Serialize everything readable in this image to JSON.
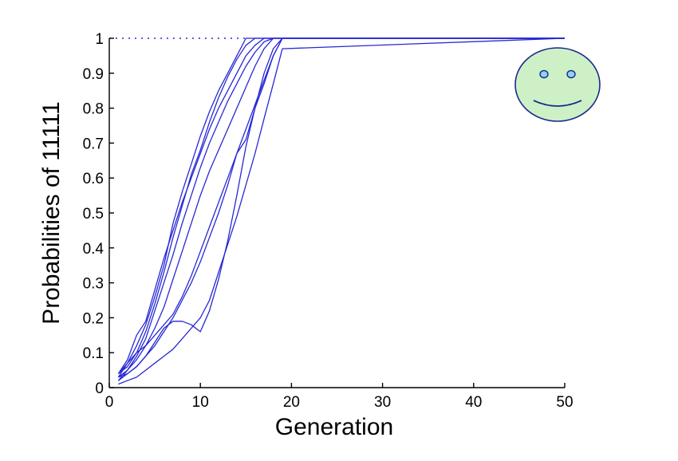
{
  "chart_data": {
    "type": "line",
    "title": "",
    "xlabel": "Generation",
    "ylabel": "Probabilities of 11111",
    "xlim": [
      0,
      50
    ],
    "ylim": [
      0,
      1
    ],
    "x_ticks": [
      0,
      10,
      20,
      30,
      40,
      50
    ],
    "x_tick_labels": [
      "0",
      "10",
      "20",
      "30",
      "40",
      "50"
    ],
    "y_ticks": [
      0,
      0.1,
      0.2,
      0.3,
      0.4,
      0.5,
      0.6,
      0.7,
      0.8,
      0.9,
      1
    ],
    "y_tick_labels": [
      "0",
      "0.1",
      "0.2",
      "0.3",
      "0.4",
      "0.5",
      "0.6",
      "0.7",
      "0.8",
      "0.9",
      "1"
    ],
    "grid": false,
    "legend": "none",
    "line_color": "#2727d6",
    "reference_line": {
      "y": 1,
      "x_range": [
        0,
        15
      ],
      "style": "dotted"
    },
    "series": [
      {
        "x": [
          1,
          2,
          3,
          4,
          5,
          6,
          7,
          8,
          9,
          10,
          11,
          12,
          13,
          14,
          15,
          16,
          17,
          18,
          19,
          50
        ],
        "y": [
          0.04,
          0.06,
          0.1,
          0.16,
          0.24,
          0.33,
          0.43,
          0.52,
          0.61,
          0.68,
          0.76,
          0.83,
          0.89,
          0.94,
          0.98,
          1,
          1,
          1,
          1,
          1
        ]
      },
      {
        "x": [
          1,
          2,
          3,
          4,
          5,
          6,
          7,
          8,
          9,
          10,
          11,
          12,
          13,
          14,
          15,
          16,
          17,
          18,
          19,
          50
        ],
        "y": [
          0.03,
          0.07,
          0.12,
          0.18,
          0.26,
          0.35,
          0.47,
          0.56,
          0.64,
          0.72,
          0.79,
          0.85,
          0.9,
          0.95,
          1,
          1,
          1,
          1,
          1,
          1
        ]
      },
      {
        "x": [
          1,
          2,
          3,
          4,
          5,
          6,
          7,
          8,
          9,
          10,
          11,
          12,
          13,
          14,
          15,
          16,
          17,
          18,
          19,
          50
        ],
        "y": [
          0.04,
          0.08,
          0.15,
          0.19,
          0.28,
          0.37,
          0.45,
          0.53,
          0.6,
          0.67,
          0.74,
          0.8,
          0.85,
          0.9,
          0.95,
          0.98,
          1,
          1,
          1,
          1
        ]
      },
      {
        "x": [
          1,
          2,
          3,
          4,
          5,
          6,
          7,
          8,
          9,
          10,
          11,
          12,
          13,
          14,
          15,
          16,
          17,
          18,
          19,
          50
        ],
        "y": [
          0.02,
          0.05,
          0.09,
          0.14,
          0.22,
          0.3,
          0.38,
          0.47,
          0.55,
          0.63,
          0.7,
          0.76,
          0.82,
          0.87,
          0.92,
          0.96,
          0.99,
          1,
          1,
          1
        ]
      },
      {
        "x": [
          1,
          2,
          3,
          4,
          5,
          6,
          7,
          8,
          9,
          10,
          11,
          12,
          13,
          14,
          15,
          16,
          17,
          18,
          19,
          50
        ],
        "y": [
          0.03,
          0.05,
          0.08,
          0.12,
          0.17,
          0.23,
          0.31,
          0.39,
          0.47,
          0.55,
          0.62,
          0.68,
          0.74,
          0.8,
          0.86,
          0.92,
          0.97,
          1,
          1,
          1
        ]
      },
      {
        "x": [
          1,
          2,
          3,
          4,
          5,
          6,
          7,
          8,
          9,
          10,
          11,
          12,
          13,
          14,
          15,
          16,
          17,
          18,
          19,
          50
        ],
        "y": [
          0.03,
          0.04,
          0.06,
          0.09,
          0.13,
          0.17,
          0.19,
          0.19,
          0.18,
          0.16,
          0.22,
          0.31,
          0.42,
          0.55,
          0.69,
          0.8,
          0.9,
          0.97,
          1,
          1
        ]
      },
      {
        "x": [
          1,
          2,
          3,
          4,
          5,
          6,
          7,
          8,
          9,
          10,
          11,
          12,
          13,
          14,
          15,
          16,
          17,
          18,
          19,
          50
        ],
        "y": [
          0.02,
          0.04,
          0.06,
          0.09,
          0.12,
          0.16,
          0.2,
          0.25,
          0.3,
          0.36,
          0.43,
          0.5,
          0.58,
          0.67,
          0.71,
          0.8,
          0.87,
          0.95,
          1,
          1
        ]
      },
      {
        "x": [
          1,
          2,
          3,
          4,
          5,
          6,
          7,
          8,
          9,
          10,
          11,
          12,
          13,
          14,
          15,
          16,
          17,
          18,
          19,
          50
        ],
        "y": [
          0.01,
          0.02,
          0.03,
          0.05,
          0.07,
          0.09,
          0.11,
          0.14,
          0.17,
          0.2,
          0.25,
          0.33,
          0.41,
          0.49,
          0.58,
          0.67,
          0.77,
          0.87,
          0.97,
          1
        ]
      },
      {
        "x": [
          1,
          2,
          3,
          4,
          5,
          6,
          7,
          8,
          9,
          10,
          11,
          12,
          13,
          14,
          15,
          16,
          17,
          18,
          19,
          50
        ],
        "y": [
          0.04,
          0.07,
          0.1,
          0.12,
          0.15,
          0.18,
          0.21,
          0.26,
          0.32,
          0.39,
          0.46,
          0.53,
          0.6,
          0.67,
          0.74,
          0.81,
          0.88,
          0.95,
          1,
          1
        ]
      }
    ]
  },
  "decoration": {
    "icon": "smiley-face-icon",
    "face_fill": "#cdf0c7",
    "face_stroke": "#1a2a8a",
    "eye_fill": "#8fd3ee"
  }
}
